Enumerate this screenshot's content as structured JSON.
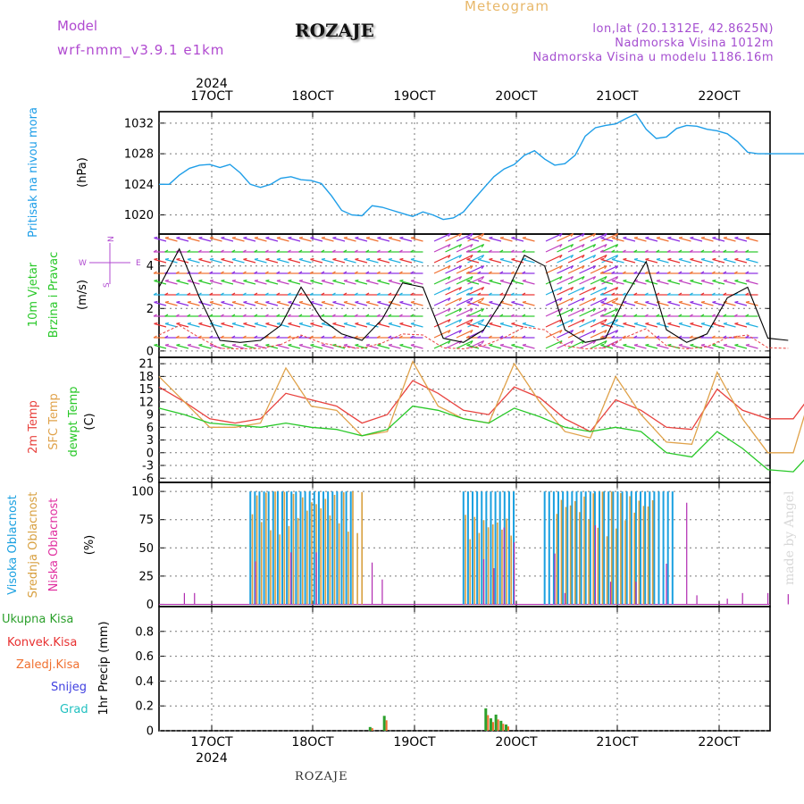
{
  "header": {
    "model_label": "Model",
    "model_name": "wrf-nmm_v3.9.1 e1km",
    "station": "ROZAJE",
    "meteogram": "Meteogram",
    "lonlat": "lon,lat (20.1312E, 42.8625N)",
    "elevation": "Nadmorska Visina 1012m",
    "model_elevation": "Nadmorska Visina u modelu 1186.16m",
    "made_by": "made by Angel",
    "bottom_station": "ROZAJE"
  },
  "time_axis": {
    "year_top": "2024",
    "year_bottom": "2024",
    "ticks": [
      "17OCT",
      "18OCT",
      "19OCT",
      "20OCT",
      "21OCT",
      "22OCT"
    ]
  },
  "colors": {
    "pressure": "#1e9ee8",
    "temp2m": "#e8423e",
    "sfc": "#e0a24a",
    "dew": "#28c828",
    "high_cloud": "#1aa0e0",
    "mid_cloud": "#d8a040",
    "low_cloud": "#b02ab0",
    "wind_speed": "#000000",
    "gust": "#e8423e",
    "total_precip": "#2ca02c",
    "conv_precip": "#e83030",
    "strat_precip": "#f07030",
    "snow": "#4040e0",
    "graupel": "#20c0c0"
  },
  "chart_data": [
    {
      "type": "line",
      "panel": "pressure",
      "ylabel": "Pritisak na nivou mora",
      "unit": "(hPa)",
      "ylim": [
        1017.5,
        1033.5
      ],
      "yticks": [
        "1020",
        "1024",
        "1028",
        "1032"
      ],
      "x": [
        0,
        0.1,
        0.2,
        0.3,
        0.4,
        0.5,
        0.6,
        0.7,
        0.8,
        0.9,
        1.0,
        1.1,
        1.2,
        1.3,
        1.4,
        1.5,
        1.6,
        1.7,
        1.8,
        1.9,
        2.0,
        2.1,
        2.2,
        2.3,
        2.4,
        2.5,
        2.6,
        2.7,
        2.8,
        2.9,
        3.0,
        3.1,
        3.2,
        3.3,
        3.4,
        3.5,
        3.6,
        3.7,
        3.8,
        3.9,
        4.0,
        4.1,
        4.2,
        4.3,
        4.4,
        4.5,
        4.6,
        4.7,
        4.8,
        4.9,
        5.0,
        5.1,
        5.2,
        5.3,
        5.4,
        5.5,
        5.6,
        5.7,
        5.8,
        5.9,
        6.0,
        6.1,
        6.2,
        6.3,
        6.4,
        6.5,
        6.6,
        6.7
      ],
      "values": [
        1024.0,
        1024.0,
        1025.2,
        1026.1,
        1026.5,
        1026.6,
        1026.2,
        1026.6,
        1025.5,
        1024.0,
        1023.6,
        1024.0,
        1024.8,
        1025.0,
        1024.6,
        1024.5,
        1024.1,
        1022.5,
        1020.6,
        1020.0,
        1019.9,
        1021.2,
        1021.0,
        1020.6,
        1020.2,
        1019.8,
        1020.4,
        1020.0,
        1019.4,
        1019.6,
        1020.4,
        1022.0,
        1023.5,
        1025.0,
        1026.0,
        1026.6,
        1027.8,
        1028.4,
        1027.3,
        1026.5,
        1026.7,
        1027.8,
        1030.3,
        1031.4,
        1031.7,
        1031.9,
        1032.6,
        1033.2,
        1031.2,
        1030.0,
        1030.2,
        1031.3,
        1031.7,
        1031.6,
        1031.2,
        1031.0,
        1030.6,
        1029.6,
        1028.2,
        1028.0,
        1028.0,
        1028.0,
        1028.0,
        1028.0,
        1028.0,
        1028.0,
        1028.0,
        1028.0
      ]
    },
    {
      "type": "line",
      "panel": "wind",
      "ylabel": "10m Vjetar",
      "ylabel2": "Brzina i Pravac",
      "unit": "(m/s)",
      "compass": "N",
      "compass_w": "W",
      "compass_e": "E",
      "compass_s": "S",
      "ylim": [
        -0.3,
        5.5
      ],
      "yticks": [
        "0",
        "2",
        "4"
      ],
      "x": [
        0,
        0.2,
        0.4,
        0.6,
        0.8,
        1.0,
        1.2,
        1.4,
        1.6,
        1.8,
        2.0,
        2.2,
        2.4,
        2.6,
        2.8,
        3.0,
        3.2,
        3.4,
        3.6,
        3.8,
        4.0,
        4.2,
        4.4,
        4.6,
        4.8,
        5.0,
        5.2,
        5.4,
        5.6,
        5.8,
        6.0,
        6.2
      ],
      "values": [
        3.0,
        4.8,
        2.5,
        0.5,
        0.4,
        0.5,
        1.2,
        3.0,
        1.5,
        0.8,
        0.5,
        1.5,
        3.2,
        3.0,
        0.6,
        0.4,
        1.0,
        2.5,
        4.5,
        4.0,
        1.0,
        0.4,
        0.6,
        2.6,
        4.2,
        1.0,
        0.4,
        0.8,
        2.5,
        3.0,
        0.6,
        0.5
      ]
    },
    {
      "type": "line",
      "panel": "temperature",
      "ylabel": "2m Temp",
      "ylabel2": "SFC Temp",
      "ylabel3": "dewpt Temp",
      "unit": "(C)",
      "ylim": [
        -7,
        22.5
      ],
      "yticks": [
        "-6",
        "-3",
        "0",
        "3",
        "6",
        "9",
        "12",
        "15",
        "18",
        "21"
      ],
      "x": [
        0,
        0.25,
        0.5,
        0.75,
        1.0,
        1.25,
        1.5,
        1.75,
        2.0,
        2.25,
        2.5,
        2.75,
        3.0,
        3.25,
        3.5,
        3.75,
        4.0,
        4.25,
        4.5,
        4.75,
        5.0,
        5.25,
        5.5,
        5.75,
        6.0,
        6.25,
        6.5,
        6.75
      ],
      "series": [
        {
          "name": "2m Temp",
          "values": [
            15.5,
            12.0,
            8.0,
            7.0,
            8.0,
            14.0,
            12.5,
            11.0,
            7.0,
            9.0,
            17.0,
            14.0,
            10.0,
            9.0,
            15.5,
            13.0,
            8.0,
            5.0,
            12.5,
            10.0,
            6.0,
            5.5,
            15.0,
            10.0,
            8.0,
            8.0,
            16.0,
            18.0
          ]
        },
        {
          "name": "SFC Temp",
          "values": [
            18.0,
            12.0,
            6.0,
            6.0,
            7.0,
            20.0,
            11.0,
            10.0,
            4.0,
            5.0,
            21.5,
            11.0,
            8.0,
            7.0,
            21.0,
            12.0,
            5.0,
            3.5,
            18.0,
            9.0,
            2.5,
            2.0,
            19.0,
            8.0,
            0.0,
            0.0,
            20.0,
            21.0
          ]
        },
        {
          "name": "dewpt Temp",
          "values": [
            10.5,
            9.0,
            7.0,
            6.5,
            6.0,
            7.0,
            6.0,
            5.5,
            4.0,
            5.5,
            11.0,
            10.0,
            8.0,
            7.0,
            10.5,
            8.5,
            6.0,
            5.0,
            6.0,
            5.0,
            0.0,
            -1.0,
            5.0,
            1.0,
            -4.0,
            -4.5,
            2.0,
            2.0
          ]
        }
      ]
    },
    {
      "type": "bar",
      "panel": "clouds",
      "ylabel": "Visoka Oblacnost",
      "ylabel2": "Srednja Oblacnost",
      "ylabel3": "Niska Oblacnost",
      "unit": "(%)",
      "ylim": [
        -2,
        108
      ],
      "yticks": [
        "0",
        "25",
        "50",
        "75",
        "100"
      ],
      "series": [
        {
          "name": "Visoka Oblacnost",
          "segments": [
            [
              0.9,
              1.9,
              100
            ],
            [
              3.0,
              3.5,
              100
            ],
            [
              3.8,
              5.1,
              100
            ]
          ]
        },
        {
          "name": "Srednja Oblacnost",
          "segments": [
            [
              0.9,
              2.0,
              100
            ],
            [
              3.0,
              3.5,
              80
            ],
            [
              3.9,
              4.9,
              100
            ]
          ]
        },
        {
          "name": "Niska Oblacnost",
          "values": [
            [
              0.25,
              10
            ],
            [
              0.35,
              10
            ],
            [
              0.95,
              38
            ],
            [
              1.3,
              46
            ],
            [
              1.55,
              46
            ],
            [
              2.1,
              37
            ],
            [
              2.2,
              22
            ],
            [
              3.2,
              40
            ],
            [
              3.3,
              32
            ],
            [
              3.4,
              68
            ],
            [
              3.5,
              55
            ],
            [
              3.9,
              45
            ],
            [
              4.0,
              10
            ],
            [
              4.3,
              70
            ],
            [
              4.45,
              20
            ],
            [
              4.7,
              20
            ],
            [
              5.0,
              36
            ],
            [
              5.2,
              90
            ],
            [
              5.3,
              8
            ],
            [
              5.6,
              5
            ],
            [
              5.75,
              10
            ],
            [
              6.0,
              10
            ],
            [
              6.2,
              9
            ],
            [
              6.7,
              10
            ],
            [
              7.5,
              10
            ]
          ]
        }
      ]
    },
    {
      "type": "bar",
      "panel": "precip",
      "ylabel": "1hr Precip",
      "unit": "(mm)",
      "ylim": [
        0,
        1.0
      ],
      "yticks": [
        "0",
        "0.2",
        "0.4",
        "0.6",
        "0.8"
      ],
      "legend": [
        "Ukupna Kisa",
        "Konvek.Kisa",
        "Zaledj.Kisa",
        "Snijeg",
        "Grad"
      ],
      "series": [
        {
          "name": "Ukupna Kisa",
          "x": [
            2.08,
            2.22,
            3.22,
            3.27,
            3.32,
            3.37,
            3.42
          ],
          "values": [
            0.03,
            0.12,
            0.18,
            0.1,
            0.13,
            0.08,
            0.05
          ]
        }
      ]
    }
  ],
  "left_labels": {
    "pressure_a": "Pritisak na nivou mora",
    "pressure_b": "(hPa)",
    "wind_a": "10m Vjetar",
    "wind_b": "Brzina i Pravac",
    "wind_c": "(m/s)",
    "temp_a": "2m Temp",
    "temp_b": "SFC Temp",
    "temp_c": "dewpt Temp",
    "temp_d": "(C)",
    "cloud_a": "Visoka Oblacnost",
    "cloud_b": "Srednja Oblacnost",
    "cloud_c": "Niska Oblacnost",
    "cloud_d": "(%)"
  }
}
